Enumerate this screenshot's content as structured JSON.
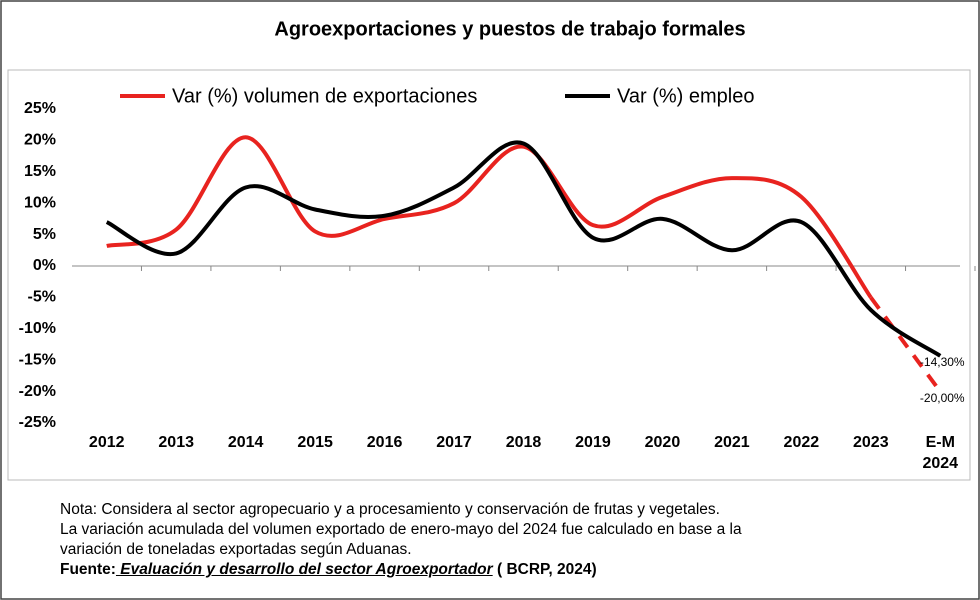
{
  "chart_data": {
    "type": "line",
    "title": "Agroexportaciones  y puestos de trabajo formales",
    "categories": [
      "2012",
      "2013",
      "2014",
      "2015",
      "2016",
      "2017",
      "2018",
      "2019",
      "2020",
      "2021",
      "2022",
      "2023",
      "E-M 2024"
    ],
    "series": [
      {
        "name": "Var (%) volumen de exportaciones",
        "color": "#e8231f",
        "dashed_last": true,
        "values": [
          3.2,
          5.8,
          20.5,
          5.5,
          7.5,
          10,
          19,
          6.5,
          11,
          14,
          11,
          -5,
          -20
        ],
        "value_labels": [
          null,
          null,
          null,
          null,
          null,
          null,
          null,
          null,
          null,
          null,
          null,
          null,
          "-20,00%"
        ]
      },
      {
        "name": "Var (%) empleo",
        "color": "#000000",
        "dashed_last": false,
        "values": [
          7,
          2,
          12.5,
          9,
          8,
          12.5,
          19.5,
          4.5,
          7.5,
          2.5,
          7,
          -7,
          -14.3
        ],
        "value_labels": [
          null,
          null,
          null,
          null,
          null,
          null,
          null,
          null,
          null,
          null,
          null,
          null,
          "-14,30%"
        ]
      }
    ],
    "ylim": [
      -25,
      25
    ],
    "yticks": [
      {
        "value": 25,
        "label": "25%"
      },
      {
        "value": 20,
        "label": "20%"
      },
      {
        "value": 15,
        "label": "15%"
      },
      {
        "value": 10,
        "label": "10%"
      },
      {
        "value": 5,
        "label": "5%"
      },
      {
        "value": 0,
        "label": "0%"
      },
      {
        "value": -5,
        "label": "-5%"
      },
      {
        "value": -10,
        "label": "-10%"
      },
      {
        "value": -15,
        "label": "-15%"
      },
      {
        "value": -20,
        "label": "-20%"
      },
      {
        "value": -25,
        "label": "-25%"
      }
    ],
    "grid": false
  },
  "note": {
    "lines": [
      "Nota: Considera al sector agropecuario y a procesamiento y conservación de frutas y vegetales.",
      "La variación acumulada del volumen exportado de enero-mayo del 2024 fue calculado en base a la",
      "variación de toneladas exportadas según Aduanas."
    ],
    "source_prefix": "Fuente:",
    "source_title": " Evaluación y desarrollo del sector Agroexportador",
    "source_suffix": " ( BCRP, 2024)"
  }
}
